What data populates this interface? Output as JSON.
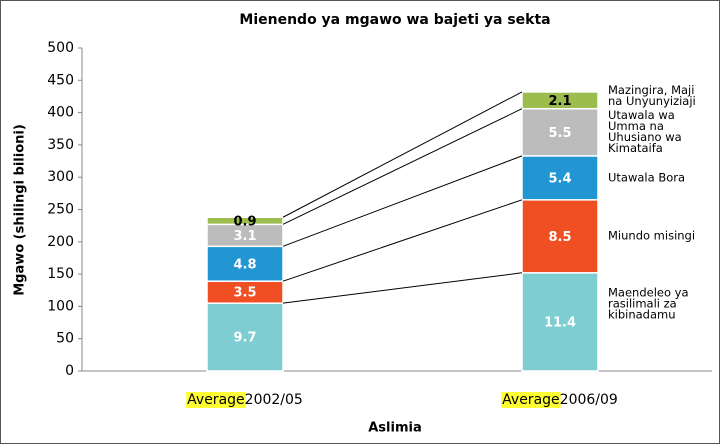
{
  "chart_data": {
    "type": "stacked_bar",
    "title": "Mienendo ya mgawo wa bajeti ya sekta",
    "y_label": "Mgawo (shilingi bilioni)",
    "x_label": "Aslimia",
    "category_highlight": "Average",
    "categories": [
      "2002/05",
      "2006/09"
    ],
    "series": [
      {
        "name": "Maendeleo ya rasilimali za kibinadamu",
        "color": "#7ecdd1",
        "values": [
          105,
          152
        ],
        "shares": [
          9.7,
          11.4
        ]
      },
      {
        "name": "Miundo misingi",
        "color": "#f04e23",
        "values": [
          34,
          113
        ],
        "shares": [
          3.5,
          8.5
        ]
      },
      {
        "name": "Utawala Bora",
        "color": "#2295d3",
        "values": [
          54,
          68
        ],
        "shares": [
          4.8,
          5.4
        ]
      },
      {
        "name": "Utawala wa Umma na Uhusiano wa Kimataifa",
        "color": "#bcbcbc",
        "values": [
          34,
          73
        ],
        "shares": [
          3.1,
          5.5
        ]
      },
      {
        "name": "Mazingira, Maji na Unyunyiziaji",
        "color": "#9cbd4e",
        "values": [
          11,
          26
        ],
        "shares": [
          0.9,
          2.1
        ]
      }
    ],
    "ylim": [
      0,
      500
    ],
    "yticks": [
      0,
      50,
      100,
      150,
      200,
      250,
      300,
      350,
      400,
      450,
      500
    ]
  }
}
